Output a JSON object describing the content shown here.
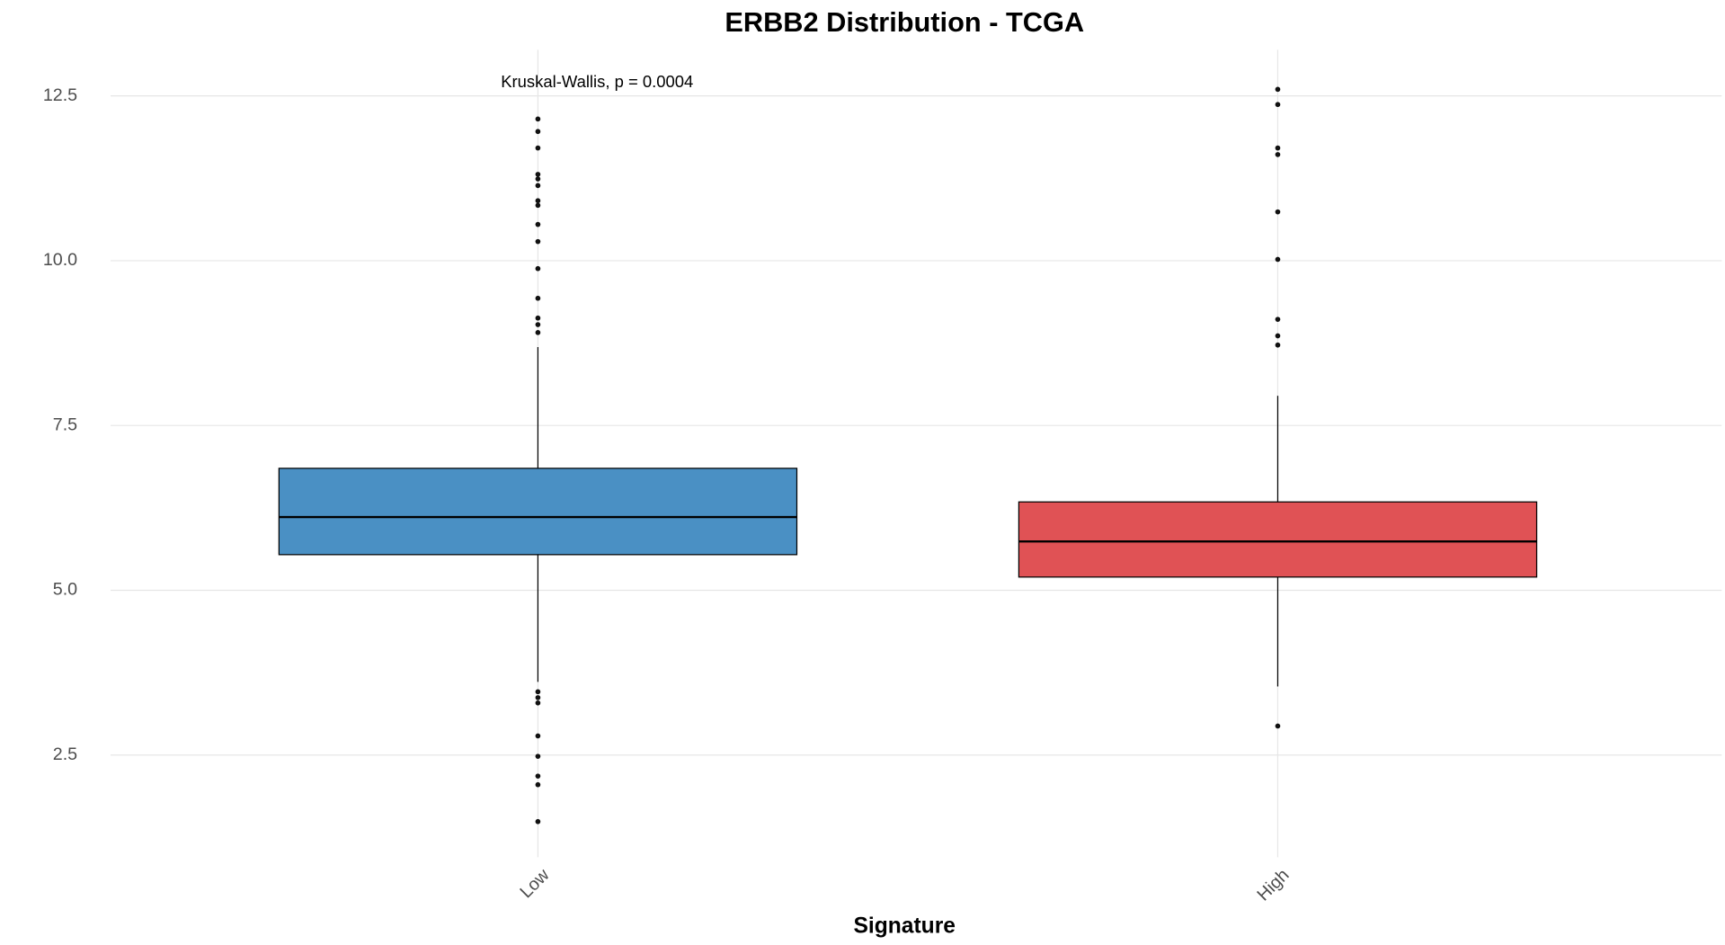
{
  "chart_data": {
    "type": "box",
    "title": "ERBB2 Distribution - TCGA",
    "x_label": "Signature",
    "annotation": "Kruskal-Wallis, p = 0.0004",
    "categories": [
      "Low",
      "High"
    ],
    "boxes": [
      {
        "color": "#4a90c4",
        "q1": 5.54,
        "median": 6.11,
        "q3": 6.85,
        "whisker_low": 3.61,
        "whisker_high": 8.69,
        "outliers": [
          12.15,
          11.96,
          11.71,
          11.31,
          11.24,
          11.14,
          10.91,
          10.84,
          10.55,
          10.29,
          9.88,
          9.43,
          9.13,
          9.03,
          8.91,
          3.46,
          3.37,
          3.29,
          2.79,
          2.48,
          2.18,
          2.05,
          1.49
        ]
      },
      {
        "color": "#e05255",
        "q1": 5.2,
        "median": 5.74,
        "q3": 6.34,
        "whisker_low": 3.54,
        "whisker_high": 7.95,
        "outliers": [
          12.6,
          12.37,
          11.71,
          11.61,
          10.74,
          10.02,
          9.11,
          8.86,
          8.72,
          2.94
        ]
      }
    ],
    "ylim": [
      0.95,
      13.2
    ],
    "yticks": [
      2.5,
      {
        "value": 5,
        "label": "5.0"
      },
      7.5,
      {
        "value": 10,
        "label": "10.0"
      },
      12.5
    ],
    "grid": true
  }
}
